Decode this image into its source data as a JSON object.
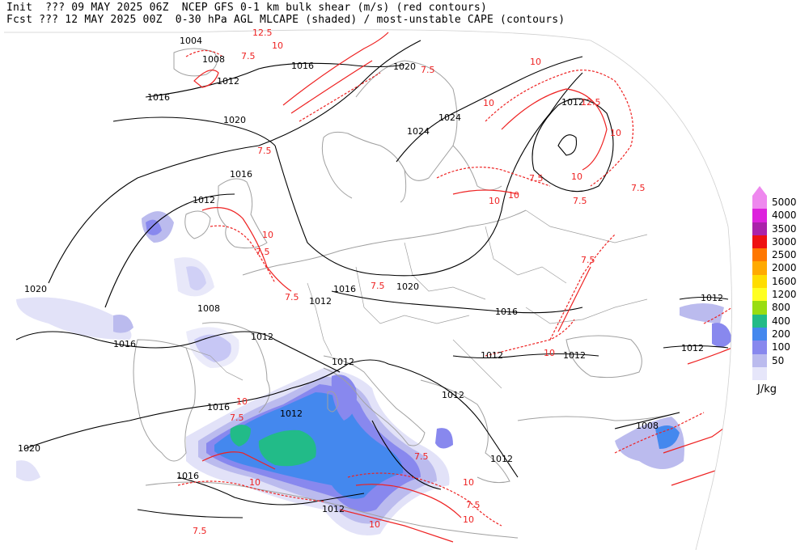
{
  "header": {
    "line1": "Init  ??? 09 MAY 2025 06Z  NCEP GFS 0-1 km bulk shear (m/s) (red contours)",
    "line2": "Fcst ??? 12 MAY 2025 00Z  0-30 hPa AGL MLCAPE (shaded) / most-unstable CAPE (contours)"
  },
  "legend": {
    "units": "J/kg",
    "levels": [
      {
        "label": "5000",
        "color": "#ee88ee"
      },
      {
        "label": "4000",
        "color": "#dd22dd"
      },
      {
        "label": "3500",
        "color": "#aa22aa"
      },
      {
        "label": "3000",
        "color": "#ee1111"
      },
      {
        "label": "2500",
        "color": "#ff7700"
      },
      {
        "label": "2000",
        "color": "#ffaa00"
      },
      {
        "label": "1600",
        "color": "#ffdd00"
      },
      {
        "label": "1200",
        "color": "#ffff22"
      },
      {
        "label": "800",
        "color": "#99dd11"
      },
      {
        "label": "400",
        "color": "#22bb88"
      },
      {
        "label": "200",
        "color": "#4488ee"
      },
      {
        "label": "100",
        "color": "#8888ee"
      },
      {
        "label": "50",
        "color": "#bbbbee"
      },
      {
        "label": "",
        "color": "#e6e6fa"
      }
    ],
    "top_marker_color": "#ee88ee"
  },
  "isobar_labels": [
    "1004",
    "1008",
    "1012",
    "1016",
    "1016",
    "1020",
    "1020",
    "1024",
    "1024",
    "1012",
    "1016",
    "1012",
    "1012",
    "1020",
    "1020",
    "1016",
    "1008",
    "1016",
    "1012",
    "1016",
    "1012",
    "1012",
    "1012",
    "1012",
    "1012",
    "1020",
    "1016",
    "1016",
    "1012",
    "1012",
    "1012",
    "1012",
    "1008"
  ],
  "shear_labels": [
    "12.5",
    "10",
    "7.5",
    "10",
    "7.5",
    "10",
    "7.5",
    "10",
    "7.5",
    "12.5",
    "10",
    "10",
    "7.5",
    "10",
    "7.5",
    "7.5",
    "7.5",
    "10",
    "7.5",
    "7.5",
    "10",
    "7.5",
    "10",
    "7.5",
    "10",
    "10",
    "7.5",
    "7.5",
    "10",
    "10"
  ],
  "colors": {
    "isobar": "#000000",
    "shear": "#ee2222",
    "coast": "#a0a0a0",
    "cape_50": "#e2e2f8",
    "cape_100": "#bbbbee",
    "cape_200": "#8888ee",
    "cape_400": "#4488ee",
    "cape_800": "#22bb88"
  }
}
